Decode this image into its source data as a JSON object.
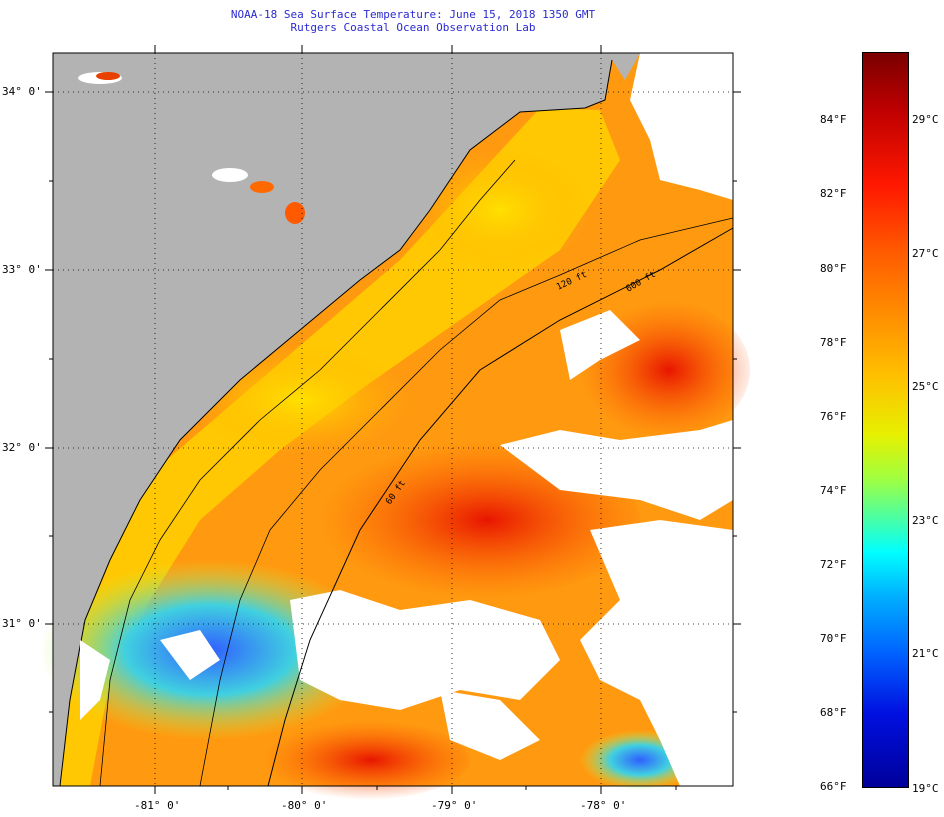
{
  "header": {
    "title": "NOAA-18 Sea Surface Temperature:  June 15, 2018 1350 GMT",
    "subtitle": "Rutgers Coastal Ocean Observation Lab"
  },
  "map": {
    "lat_labels": [
      "34° 0'",
      "33° 0'",
      "32° 0'",
      "31° 0'"
    ],
    "lon_labels": [
      "-81° 0'",
      "-80° 0'",
      "-79° 0'",
      "-78° 0'"
    ],
    "contour_labels": [
      "120 ft",
      "600 ft",
      "60 ft"
    ]
  },
  "colorbar": {
    "fahrenheit": [
      "84°F",
      "82°F",
      "80°F",
      "78°F",
      "76°F",
      "74°F",
      "72°F",
      "70°F",
      "68°F",
      "66°F"
    ],
    "celsius": [
      "29°C",
      "27°C",
      "25°C",
      "23°C",
      "21°C",
      "19°C"
    ]
  },
  "colors": {
    "land": "#b3b3b3",
    "title": "#2a2ad0",
    "cloud": "#ffffff"
  }
}
